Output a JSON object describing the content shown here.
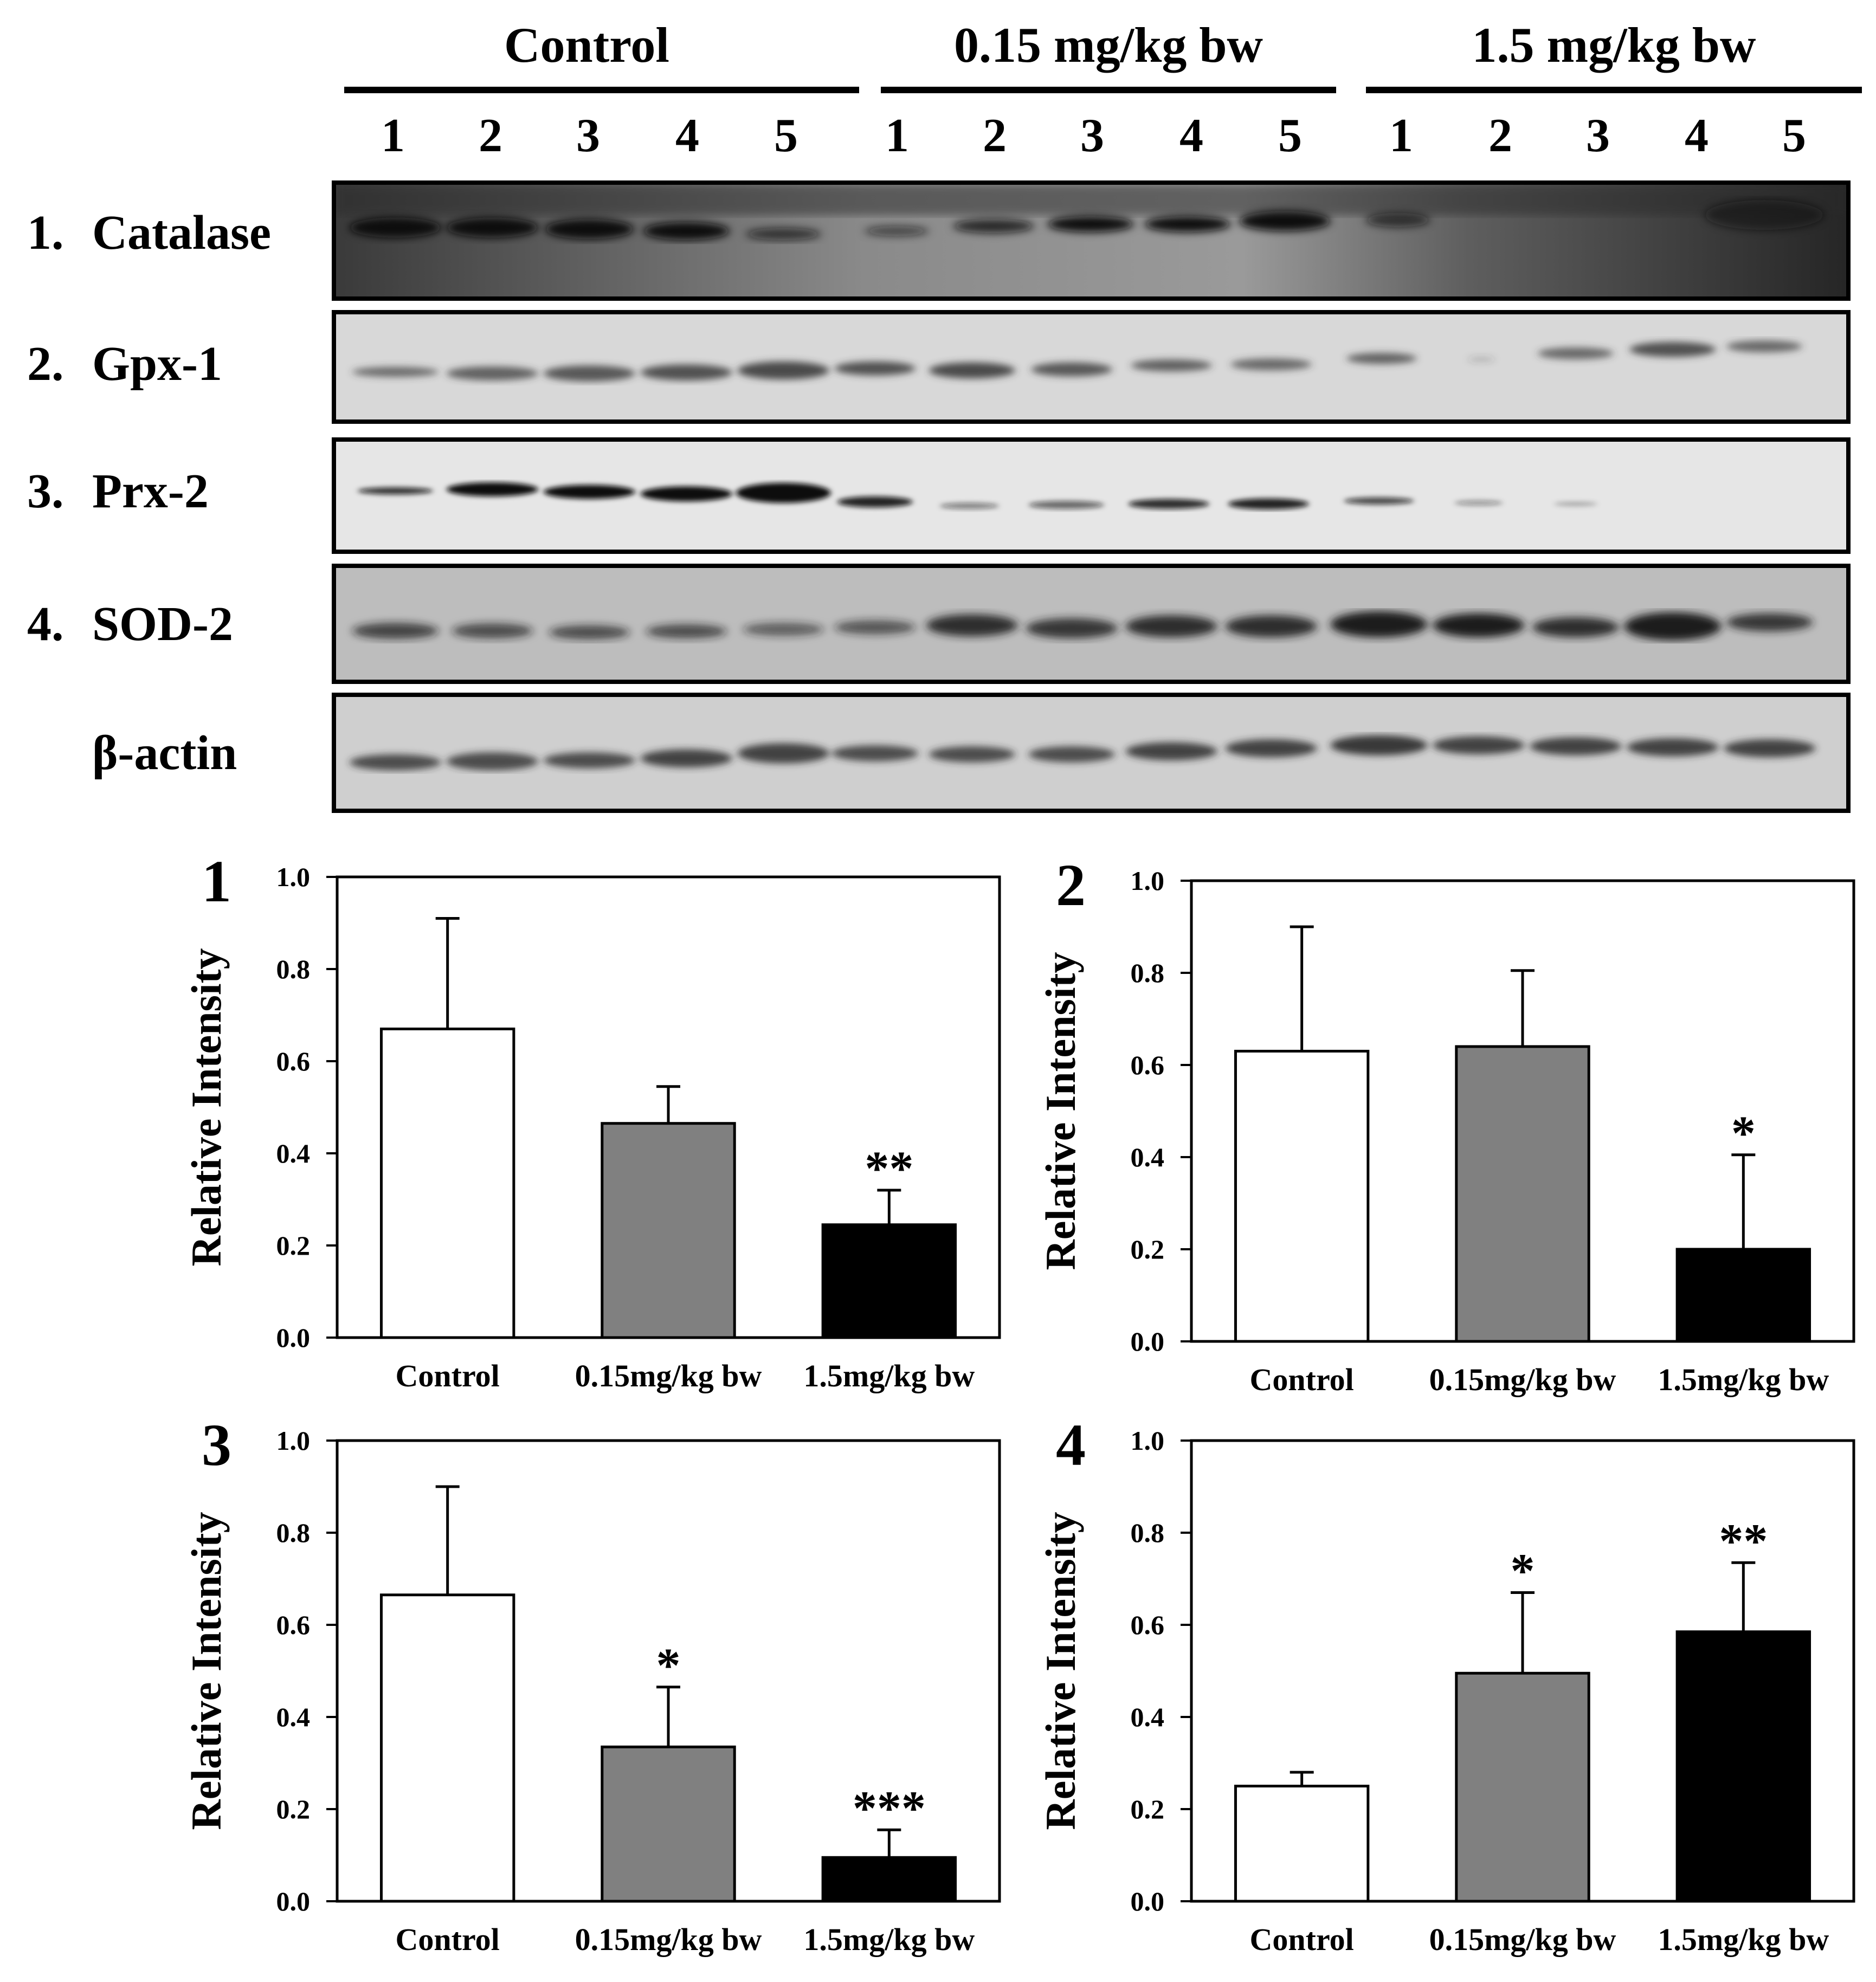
{
  "blot": {
    "groups": [
      {
        "label": "Control",
        "lanes": [
          "1",
          "2",
          "3",
          "4",
          "5"
        ]
      },
      {
        "label": "0.15 mg/kg bw",
        "lanes": [
          "1",
          "2",
          "3",
          "4",
          "5"
        ]
      },
      {
        "label": "1.5 mg/kg bw",
        "lanes": [
          "1",
          "2",
          "3",
          "4",
          "5"
        ]
      }
    ],
    "rows": [
      {
        "num": "1.",
        "name": "Catalase"
      },
      {
        "num": "2.",
        "name": "Gpx-1"
      },
      {
        "num": "3.",
        "name": "Prx-2"
      },
      {
        "num": "4.",
        "name": "SOD-2"
      },
      {
        "num": "",
        "name": "β-actin"
      }
    ]
  },
  "colors": {
    "control": "#ffffff",
    "low_dose": "#808080",
    "high_dose": "#000000"
  },
  "chart_data": [
    {
      "type": "bar",
      "panel": "1",
      "categories": [
        "Control",
        "0.15mg/kg bw",
        "1.5mg/kg bw"
      ],
      "values": [
        0.67,
        0.465,
        0.245
      ],
      "errors": [
        0.24,
        0.08,
        0.075
      ],
      "significance": [
        "",
        "",
        "**"
      ],
      "ylabel": "Relative Intensity",
      "ylim": [
        0,
        1.0
      ],
      "yticks": [
        "0.0",
        "0.2",
        "0.4",
        "0.6",
        "0.8",
        "1.0"
      ]
    },
    {
      "type": "bar",
      "panel": "2",
      "categories": [
        "Control",
        "0.15mg/kg bw",
        "1.5mg/kg bw"
      ],
      "values": [
        0.63,
        0.64,
        0.2
      ],
      "errors": [
        0.27,
        0.165,
        0.205
      ],
      "significance": [
        "",
        "",
        "*"
      ],
      "ylabel": "Relative Intensity",
      "ylim": [
        0,
        1.0
      ],
      "yticks": [
        "0.0",
        "0.2",
        "0.4",
        "0.6",
        "0.8",
        "1.0"
      ]
    },
    {
      "type": "bar",
      "panel": "3",
      "categories": [
        "Control",
        "0.15mg/kg bw",
        "1.5mg/kg bw"
      ],
      "values": [
        0.665,
        0.335,
        0.095
      ],
      "errors": [
        0.235,
        0.13,
        0.06
      ],
      "significance": [
        "",
        "*",
        "***"
      ],
      "ylabel": "Relative Intensity",
      "ylim": [
        0,
        1.0
      ],
      "yticks": [
        "0.0",
        "0.2",
        "0.4",
        "0.6",
        "0.8",
        "1.0"
      ]
    },
    {
      "type": "bar",
      "panel": "4",
      "categories": [
        "Control",
        "0.15mg/kg bw",
        "1.5mg/kg bw"
      ],
      "values": [
        0.25,
        0.495,
        0.585
      ],
      "errors": [
        0.03,
        0.175,
        0.15
      ],
      "significance": [
        "",
        "*",
        "**"
      ],
      "ylabel": "Relative Intensity",
      "ylim": [
        0,
        1.0
      ],
      "yticks": [
        "0.0",
        "0.2",
        "0.4",
        "0.6",
        "0.8",
        "1.0"
      ]
    }
  ]
}
